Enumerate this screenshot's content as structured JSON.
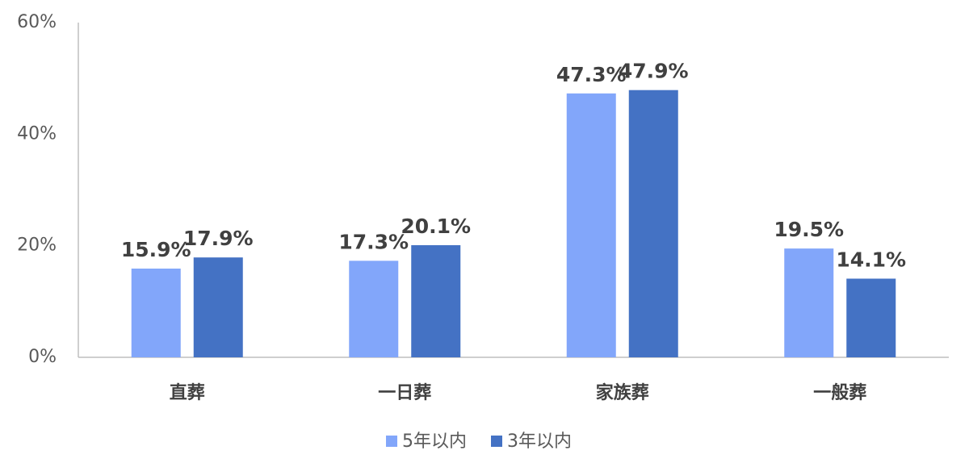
{
  "chart_data": {
    "type": "bar",
    "categories": [
      "直葬",
      "一日葬",
      "家族葬",
      "一般葬"
    ],
    "series": [
      {
        "name": "5年以内",
        "color": "#82a6fa",
        "values": [
          15.9,
          17.3,
          47.3,
          19.5
        ],
        "value_labels": [
          "15.9%",
          "17.3%",
          "47.3%",
          "19.5%"
        ]
      },
      {
        "name": "3年以内",
        "color": "#4472c4",
        "values": [
          17.9,
          20.1,
          47.9,
          14.1
        ],
        "value_labels": [
          "17.9%",
          "20.1%",
          "47.9%",
          "14.1%"
        ]
      }
    ],
    "ylim": [
      0,
      60
    ],
    "yticks": [
      {
        "value": 0,
        "label": "0%"
      },
      {
        "value": 20,
        "label": "20%"
      },
      {
        "value": 40,
        "label": "40%"
      },
      {
        "value": 60,
        "label": "60%"
      }
    ],
    "grid": false,
    "legend": "bottom"
  }
}
